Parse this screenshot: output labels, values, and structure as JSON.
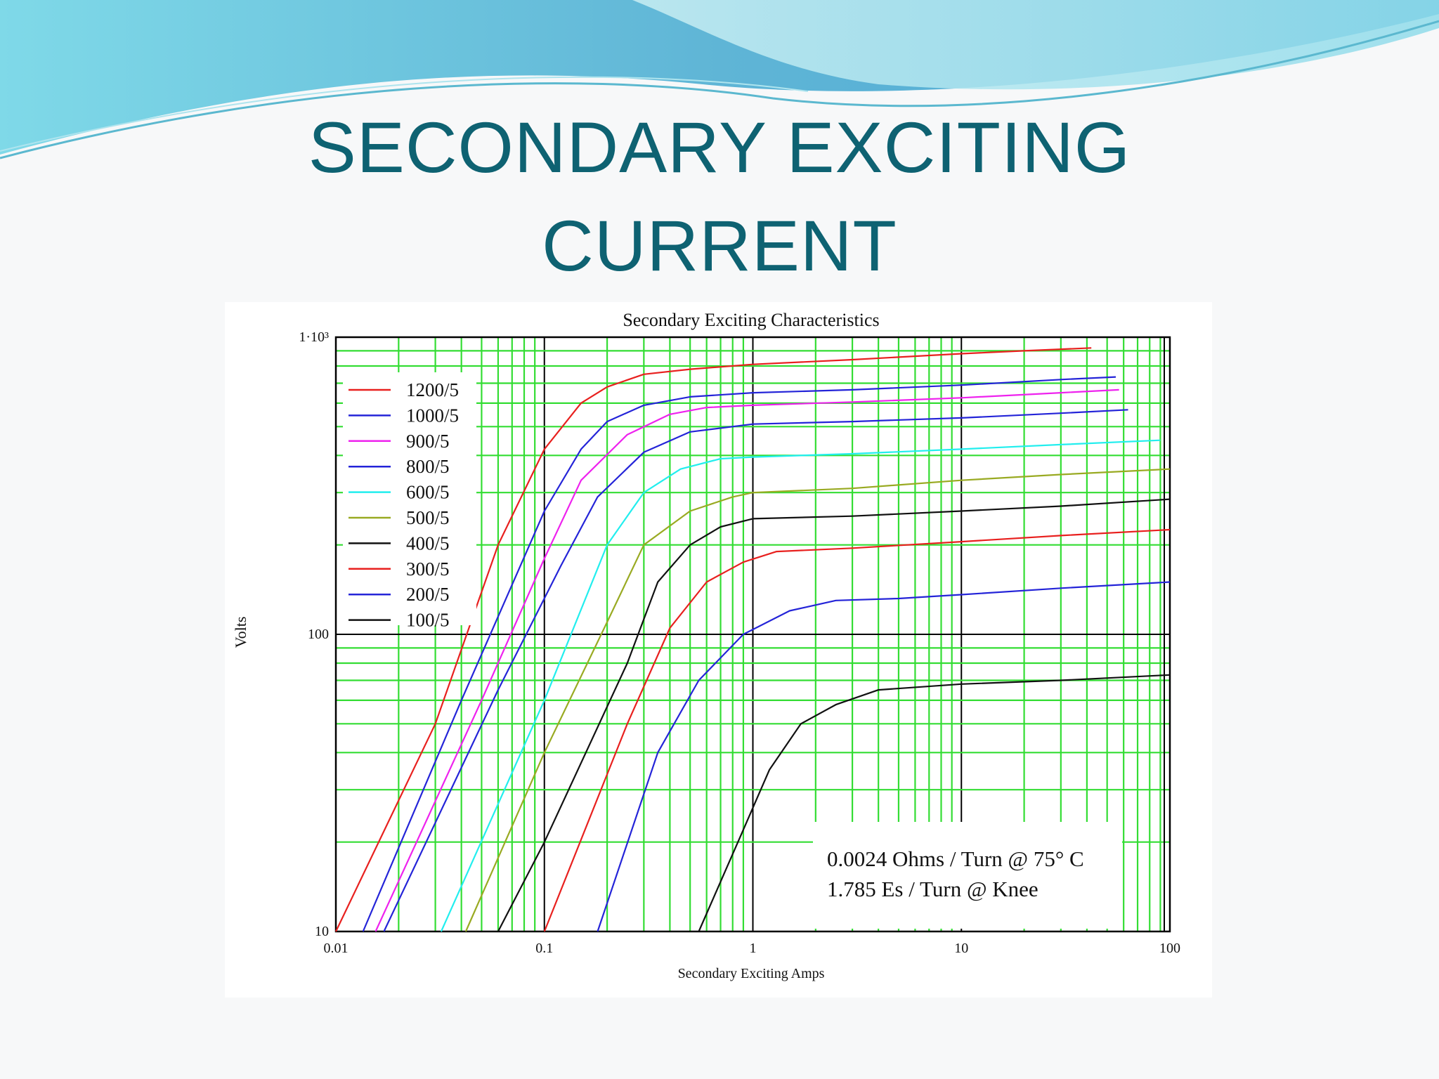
{
  "slide": {
    "title_line1": "SECONDARY EXCITING",
    "title_line2": "CURRENT"
  },
  "colors": {
    "title": "#0e6272",
    "grid_minor": "#33dd33",
    "grid_major": "#000000",
    "wave_dark": "#5fb9d3",
    "wave_light": "#9fe0ee"
  },
  "chart_data": {
    "type": "line",
    "title": "Secondary Exciting Characteristics",
    "xlabel": "Secondary Exciting Amps",
    "ylabel": "Volts",
    "xscale": "log",
    "yscale": "log",
    "xlim": [
      0.01,
      100
    ],
    "ylim": [
      10,
      1000
    ],
    "x_ticks": [
      "0.01",
      "0.1",
      "1",
      "10",
      "100"
    ],
    "y_ticks": [
      "10",
      "100",
      "1·10³"
    ],
    "grid": true,
    "legend_position": "upper-left",
    "annotation": [
      "0.0024 Ohms / Turn @ 75° C",
      "1.785 Es / Turn @ Knee"
    ],
    "series": [
      {
        "name": "1200/5",
        "color": "#e8201e",
        "points": [
          [
            0.01,
            10
          ],
          [
            0.03,
            50
          ],
          [
            0.06,
            200
          ],
          [
            0.1,
            420
          ],
          [
            0.15,
            600
          ],
          [
            0.2,
            680
          ],
          [
            0.3,
            750
          ],
          [
            0.5,
            780
          ],
          [
            1,
            810
          ],
          [
            3,
            840
          ],
          [
            10,
            880
          ],
          [
            20,
            900
          ],
          [
            42,
            920
          ]
        ]
      },
      {
        "name": "1000/5",
        "color": "#2424d8",
        "points": [
          [
            0.0135,
            10
          ],
          [
            0.04,
            60
          ],
          [
            0.1,
            260
          ],
          [
            0.15,
            420
          ],
          [
            0.2,
            520
          ],
          [
            0.3,
            590
          ],
          [
            0.5,
            630
          ],
          [
            1,
            650
          ],
          [
            3,
            665
          ],
          [
            10,
            690
          ],
          [
            30,
            720
          ],
          [
            55,
            735
          ]
        ]
      },
      {
        "name": "900/5",
        "color": "#ee22ee",
        "points": [
          [
            0.0155,
            10
          ],
          [
            0.05,
            60
          ],
          [
            0.1,
            180
          ],
          [
            0.15,
            330
          ],
          [
            0.25,
            470
          ],
          [
            0.4,
            550
          ],
          [
            0.6,
            580
          ],
          [
            1,
            590
          ],
          [
            3,
            605
          ],
          [
            10,
            625
          ],
          [
            30,
            650
          ],
          [
            57,
            665
          ]
        ]
      },
      {
        "name": "800/5",
        "color": "#2424d8",
        "points": [
          [
            0.017,
            10
          ],
          [
            0.06,
            65
          ],
          [
            0.12,
            170
          ],
          [
            0.18,
            290
          ],
          [
            0.3,
            410
          ],
          [
            0.5,
            480
          ],
          [
            1,
            510
          ],
          [
            3,
            520
          ],
          [
            10,
            535
          ],
          [
            30,
            555
          ],
          [
            63,
            570
          ]
        ]
      },
      {
        "name": "600/5",
        "color": "#22eeee",
        "points": [
          [
            0.032,
            10
          ],
          [
            0.1,
            60
          ],
          [
            0.2,
            200
          ],
          [
            0.3,
            300
          ],
          [
            0.45,
            360
          ],
          [
            0.7,
            390
          ],
          [
            1,
            395
          ],
          [
            3,
            405
          ],
          [
            10,
            420
          ],
          [
            30,
            435
          ],
          [
            90,
            450
          ]
        ]
      },
      {
        "name": "500/5",
        "color": "#99aa22",
        "points": [
          [
            0.042,
            10
          ],
          [
            0.1,
            40
          ],
          [
            0.2,
            110
          ],
          [
            0.3,
            200
          ],
          [
            0.5,
            260
          ],
          [
            0.8,
            290
          ],
          [
            1,
            300
          ],
          [
            3,
            310
          ],
          [
            10,
            330
          ],
          [
            30,
            345
          ],
          [
            100,
            360
          ]
        ]
      },
      {
        "name": "400/5",
        "color": "#111111",
        "points": [
          [
            0.06,
            10
          ],
          [
            0.1,
            20
          ],
          [
            0.25,
            80
          ],
          [
            0.35,
            150
          ],
          [
            0.5,
            200
          ],
          [
            0.7,
            230
          ],
          [
            1,
            245
          ],
          [
            3,
            250
          ],
          [
            10,
            260
          ],
          [
            30,
            270
          ],
          [
            100,
            285
          ]
        ]
      },
      {
        "name": "300/5",
        "color": "#e8201e",
        "points": [
          [
            0.1,
            10
          ],
          [
            0.25,
            50
          ],
          [
            0.4,
            105
          ],
          [
            0.6,
            150
          ],
          [
            0.9,
            175
          ],
          [
            1.3,
            190
          ],
          [
            3,
            195
          ],
          [
            10,
            205
          ],
          [
            30,
            215
          ],
          [
            100,
            225
          ]
        ]
      },
      {
        "name": "200/5",
        "color": "#2424d8",
        "points": [
          [
            0.18,
            10
          ],
          [
            0.35,
            40
          ],
          [
            0.55,
            70
          ],
          [
            0.9,
            100
          ],
          [
            1.5,
            120
          ],
          [
            2.5,
            130
          ],
          [
            5,
            132
          ],
          [
            10,
            136
          ],
          [
            30,
            143
          ],
          [
            100,
            150
          ]
        ]
      },
      {
        "name": "100/5",
        "color": "#111111",
        "points": [
          [
            0.55,
            10
          ],
          [
            0.9,
            22
          ],
          [
            1.2,
            35
          ],
          [
            1.7,
            50
          ],
          [
            2.5,
            58
          ],
          [
            4,
            65
          ],
          [
            10,
            68
          ],
          [
            30,
            70
          ],
          [
            100,
            73
          ]
        ]
      }
    ]
  }
}
